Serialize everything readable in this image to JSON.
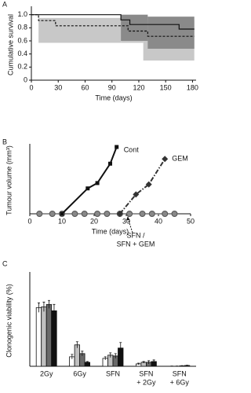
{
  "chart_data": [
    {
      "type": "step",
      "panel": "A",
      "xlabel": "Time (days)",
      "ylabel": "Cumulative survival",
      "xlim": [
        0,
        184
      ],
      "xticks": [
        0,
        30,
        60,
        90,
        120,
        150,
        180
      ],
      "ylim": [
        0,
        1.08
      ],
      "yticks": [
        0,
        0.2,
        0.4,
        0.6,
        0.8,
        {
          "value": 1,
          "label": "1.0"
        }
      ],
      "bands": [
        {
          "color": "#c8c8c8",
          "x": [
            8,
            100,
            125,
            182
          ],
          "lower": [
            0.57,
            0.57,
            0.3,
            0.3
          ],
          "upper": [
            0.95,
            0.95,
            0.92,
            0.92
          ]
        },
        {
          "color": "#8a8a8a",
          "x": [
            100,
            130,
            182
          ],
          "lower": [
            0.6,
            0.48,
            0.48
          ],
          "upper": [
            1,
            0.97,
            0.97
          ]
        }
      ],
      "series": [
        {
          "color": "#111111",
          "dash": false,
          "x": [
            0,
            100,
            110,
            165,
            182
          ],
          "values": [
            1,
            0.92,
            0.85,
            0.78,
            0.78
          ]
        },
        {
          "color": "#111111",
          "dash": true,
          "x": [
            0,
            8,
            27,
            108,
            130,
            182
          ],
          "values": [
            1,
            0.91,
            0.83,
            0.75,
            0.67,
            0.67
          ]
        }
      ]
    },
    {
      "type": "line",
      "panel": "B",
      "xlabel": "Time (days)",
      "ylabel": "Tumour volume (mm³)",
      "xlim": [
        0,
        50
      ],
      "xticks": [
        0,
        10,
        20,
        30,
        40,
        50
      ],
      "ylim": [
        0,
        100
      ],
      "series": [
        {
          "name": "Cont",
          "color": "#111111",
          "marker": "square",
          "dash": false,
          "x": [
            10,
            18,
            21,
            25,
            27
          ],
          "values": [
            0,
            38,
            46,
            75,
            100
          ]
        },
        {
          "name": "GEM",
          "color": "#333333",
          "marker": "diamond",
          "dash": true,
          "x": [
            28,
            33,
            37,
            42
          ],
          "values": [
            0,
            29,
            44,
            82
          ]
        },
        {
          "color": "#777777",
          "marker": "circle",
          "dash": false,
          "x": [
            3,
            7,
            10,
            14,
            17,
            21,
            24,
            28,
            31,
            35,
            38,
            42,
            45
          ],
          "values": [
            0,
            0,
            0,
            0,
            0,
            0,
            0,
            0,
            0,
            0,
            0,
            0,
            0
          ]
        }
      ],
      "annotations": [
        "SFN /",
        "SFN + GEM"
      ]
    },
    {
      "type": "bar",
      "panel": "C",
      "ylabel": "Clonogenic viability (%)",
      "ylim": [
        0,
        115
      ],
      "categories": [
        [
          "2Gy"
        ],
        [
          "6Gy"
        ],
        [
          "SFN"
        ],
        [
          "SFN",
          "+ 2Gy"
        ],
        [
          "SFN",
          "+ 6Gy"
        ]
      ],
      "series": [
        {
          "color": "#ffffff",
          "values": [
            74,
            12,
            10,
            3,
            0
          ],
          "errors": [
            6,
            3,
            2,
            1,
            0.3
          ]
        },
        {
          "color": "#c0c0c0",
          "values": [
            75,
            27,
            14,
            5,
            0
          ],
          "errors": [
            6,
            4,
            3,
            1,
            0.3
          ]
        },
        {
          "color": "#6a6a6a",
          "values": [
            78,
            16,
            13,
            5,
            0.5
          ],
          "errors": [
            5,
            3,
            3,
            2,
            0.3
          ]
        },
        {
          "color": "#111111",
          "values": [
            70,
            5,
            23,
            6,
            1
          ],
          "errors": [
            8,
            1,
            7,
            2,
            0.4
          ]
        }
      ]
    }
  ]
}
